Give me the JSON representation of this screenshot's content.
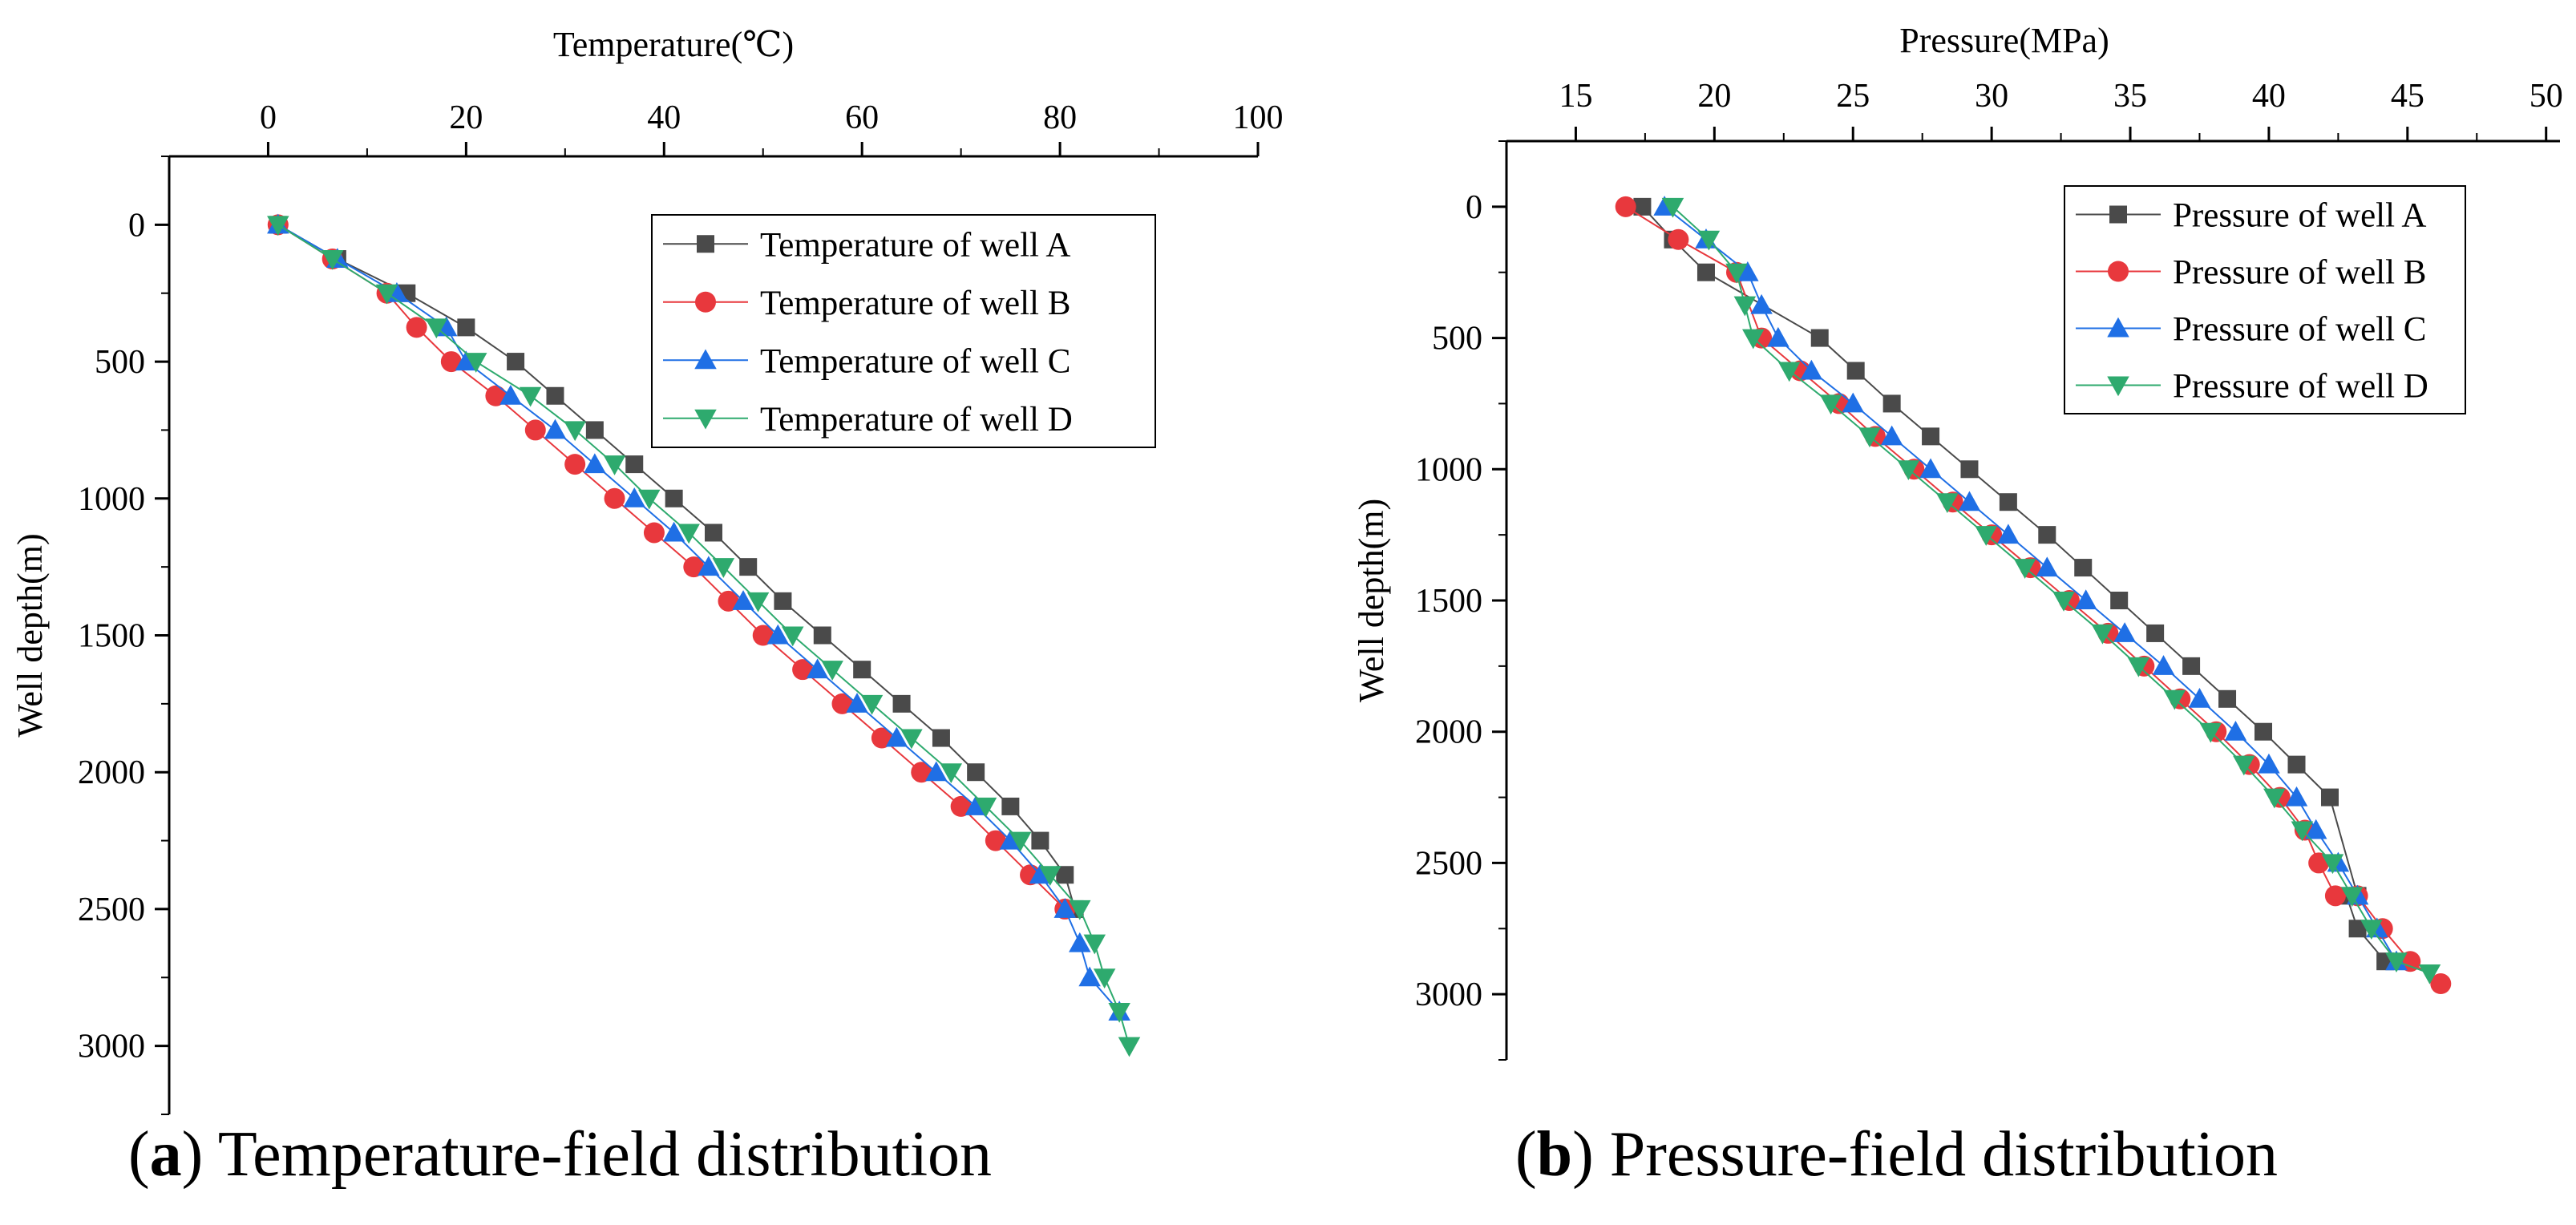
{
  "chart_data": [
    {
      "type": "line",
      "caption_letter": "a",
      "caption_text": "Temperature-field distribution",
      "xlabel": "Temperature(℃)",
      "ylabel": "Well depth(m)",
      "xlim": [
        -10,
        100
      ],
      "ylim": [
        -250,
        3250
      ],
      "xticks": [
        0,
        20,
        40,
        60,
        80,
        100
      ],
      "yticks": [
        0,
        500,
        1000,
        1500,
        2000,
        2500,
        3000
      ],
      "x_axis_position": "top",
      "y_inverted": true,
      "legend_position": "top-right",
      "series": [
        {
          "name": "Temperature of well A",
          "color": "#4a4a4a",
          "marker": "square",
          "x": [
            1,
            7,
            14,
            20,
            25,
            29,
            33,
            37,
            41,
            45,
            48.5,
            52,
            56,
            60,
            64,
            68,
            71.5,
            75,
            78,
            80.5,
            81.5
          ],
          "y": [
            0,
            125,
            250,
            375,
            500,
            625,
            750,
            875,
            1000,
            1125,
            1250,
            1375,
            1500,
            1625,
            1750,
            1875,
            2000,
            2125,
            2250,
            2375,
            2500
          ]
        },
        {
          "name": "Temperature of well B",
          "color": "#e8383d",
          "marker": "circle",
          "x": [
            1,
            6.5,
            12,
            15,
            18.5,
            23,
            27,
            31,
            35,
            39,
            43,
            46.5,
            50,
            54,
            58,
            62,
            66,
            70,
            73.5,
            77,
            80.5
          ],
          "y": [
            0,
            125,
            250,
            375,
            500,
            625,
            750,
            875,
            1000,
            1125,
            1250,
            1375,
            1500,
            1625,
            1750,
            1875,
            2000,
            2125,
            2250,
            2375,
            2500
          ]
        },
        {
          "name": "Temperature of well C",
          "color": "#1f6fe5",
          "marker": "triangle-up",
          "x": [
            1,
            7,
            13,
            18,
            20,
            24.5,
            29,
            33,
            37,
            41,
            44.5,
            48,
            51.5,
            55.5,
            59.5,
            63.5,
            67.5,
            71.5,
            75,
            78,
            80.5,
            82,
            83,
            86
          ],
          "y": [
            0,
            125,
            250,
            375,
            500,
            625,
            750,
            875,
            1000,
            1125,
            1250,
            1375,
            1500,
            1625,
            1750,
            1875,
            2000,
            2125,
            2250,
            2375,
            2500,
            2625,
            2750,
            2875
          ]
        },
        {
          "name": "Temperature of well D",
          "color": "#2eaa6e",
          "marker": "triangle-down",
          "x": [
            1,
            6.5,
            12,
            17,
            21,
            26.5,
            31,
            35,
            38.5,
            42.5,
            46,
            49.5,
            53,
            57,
            61,
            65,
            69,
            72.5,
            76,
            79,
            82,
            83.5,
            84.5,
            86,
            87
          ],
          "y": [
            0,
            125,
            250,
            375,
            500,
            625,
            750,
            875,
            1000,
            1125,
            1250,
            1375,
            1500,
            1625,
            1750,
            1875,
            2000,
            2125,
            2250,
            2375,
            2500,
            2625,
            2750,
            2875,
            3000
          ]
        }
      ]
    },
    {
      "type": "line",
      "caption_letter": "b",
      "caption_text": "Pressure-field distribution",
      "xlabel": "Pressure(MPa)",
      "ylabel": "Well depth(m)",
      "xlim": [
        12.5,
        50.5
      ],
      "ylim": [
        -250,
        3250
      ],
      "xticks": [
        15,
        20,
        25,
        30,
        35,
        40,
        45,
        50
      ],
      "yticks": [
        0,
        500,
        1000,
        1500,
        2000,
        2500,
        3000
      ],
      "x_axis_position": "top",
      "y_inverted": true,
      "legend_position": "top-right",
      "series": [
        {
          "name": "Pressure of well A",
          "color": "#4a4a4a",
          "marker": "square",
          "x": [
            17.4,
            18.5,
            19.7,
            23.8,
            25.1,
            26.4,
            27.8,
            29.2,
            30.6,
            32,
            33.3,
            34.6,
            35.9,
            37.2,
            38.5,
            39.8,
            41,
            42.2,
            43.2,
            42.8,
            43.2,
            44.2
          ],
          "y": [
            0,
            125,
            250,
            500,
            625,
            750,
            875,
            1000,
            1125,
            1250,
            1375,
            1500,
            1625,
            1750,
            1875,
            2000,
            2125,
            2250,
            2625,
            2625,
            2750,
            2875
          ],
          "order_hint": "as-plotted"
        },
        {
          "name": "Pressure of well B",
          "color": "#e8383d",
          "marker": "circle",
          "x": [
            16.8,
            18.7,
            20.8,
            21.7,
            23.1,
            24.5,
            25.8,
            27.2,
            28.6,
            30,
            31.4,
            32.8,
            34.2,
            35.5,
            36.8,
            38.1,
            39.3,
            40.4,
            41.3,
            41.8,
            42.4,
            43.2,
            44.1,
            45.1,
            46.2
          ],
          "y": [
            0,
            125,
            250,
            500,
            625,
            750,
            875,
            1000,
            1125,
            1250,
            1375,
            1500,
            1625,
            1750,
            1875,
            2000,
            2125,
            2250,
            2375,
            2500,
            2625,
            2625,
            2750,
            2875,
            2960
          ]
        },
        {
          "name": "Pressure of well C",
          "color": "#1f6fe5",
          "marker": "triangle-up",
          "x": [
            18.2,
            19.7,
            21.2,
            21.7,
            22.3,
            23.5,
            25,
            26.4,
            27.8,
            29.2,
            30.6,
            32,
            33.4,
            34.8,
            36.2,
            37.5,
            38.8,
            40,
            41,
            41.7,
            42.5,
            43.2,
            43.9,
            44.6
          ],
          "y": [
            0,
            125,
            250,
            375,
            500,
            625,
            750,
            875,
            1000,
            1125,
            1250,
            1375,
            1500,
            1625,
            1750,
            1875,
            2000,
            2125,
            2250,
            2375,
            2500,
            2625,
            2750,
            2875
          ]
        },
        {
          "name": "Pressure of well D",
          "color": "#2eaa6e",
          "marker": "triangle-down",
          "x": [
            18.5,
            19.8,
            20.8,
            21.1,
            21.4,
            22.7,
            24.2,
            25.6,
            27,
            28.4,
            29.8,
            31.2,
            32.6,
            34,
            35.3,
            36.6,
            37.9,
            39.1,
            40.2,
            41.2,
            42.3,
            43,
            43.7,
            44.6,
            45.8
          ],
          "y": [
            0,
            125,
            250,
            375,
            500,
            625,
            750,
            875,
            1000,
            1125,
            1250,
            1375,
            1500,
            1625,
            1750,
            1875,
            2000,
            2125,
            2250,
            2375,
            2500,
            2625,
            2750,
            2875,
            2920
          ]
        }
      ]
    }
  ]
}
